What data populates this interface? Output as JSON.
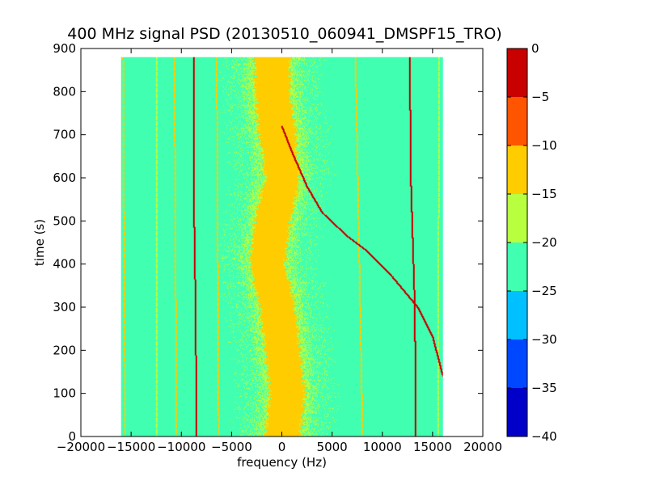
{
  "chart_data": [
    {
      "type": "heatmap",
      "title": "400 MHz signal PSD (20130510_060941_DMSPF15_TRO)",
      "xlabel": "frequency (Hz)",
      "ylabel": "time (s)",
      "xlim": [
        -20000,
        20000
      ],
      "ylim": [
        0,
        900
      ],
      "x_ticks": [
        -20000,
        -15000,
        -10000,
        -5000,
        0,
        5000,
        10000,
        15000,
        20000
      ],
      "x_tick_labels": [
        "−20000",
        "−15000",
        "−10000",
        "−5000",
        "0",
        "5000",
        "10000",
        "15000",
        "20000"
      ],
      "y_ticks": [
        0,
        100,
        200,
        300,
        400,
        500,
        600,
        700,
        800,
        900
      ],
      "y_tick_labels": [
        "0",
        "100",
        "200",
        "300",
        "400",
        "500",
        "600",
        "700",
        "800",
        "900"
      ],
      "data_extent": {
        "x": [
          -16000,
          16000
        ],
        "y": [
          0,
          880
        ]
      },
      "background_level": -22.5,
      "noise_band": {
        "level": -12.5,
        "center_points": [
          {
            "t": 0,
            "f": 0
          },
          {
            "t": 100,
            "f": 500
          },
          {
            "t": 200,
            "f": 0
          },
          {
            "t": 300,
            "f": -500
          },
          {
            "t": 400,
            "f": -1500
          },
          {
            "t": 500,
            "f": -1000
          },
          {
            "t": 600,
            "f": 0
          },
          {
            "t": 700,
            "f": -500
          },
          {
            "t": 800,
            "f": -1000
          },
          {
            "t": 880,
            "f": -1000
          }
        ],
        "half_width": 2500
      },
      "lines": [
        {
          "level": -2.5,
          "points": [
            [
              -8500,
              0
            ],
            [
              -8600,
              300
            ],
            [
              -8800,
              600
            ],
            [
              -8800,
              880
            ]
          ]
        },
        {
          "level": -2.5,
          "points": [
            [
              13300,
              0
            ],
            [
              13200,
              300
            ],
            [
              12800,
              600
            ],
            [
              12700,
              880
            ]
          ]
        },
        {
          "level": -2.5,
          "points": [
            [
              16000,
              140
            ],
            [
              15000,
              230
            ],
            [
              13500,
              300
            ],
            [
              11000,
              370
            ],
            [
              8500,
              430
            ],
            [
              6500,
              465
            ],
            [
              4000,
              520
            ],
            [
              2500,
              580
            ],
            [
              1000,
              660
            ],
            [
              0,
              720
            ]
          ]
        },
        {
          "level": -12.5,
          "points": [
            [
              -15600,
              0
            ],
            [
              -15800,
              880
            ]
          ]
        },
        {
          "level": -12.5,
          "points": [
            [
              -10500,
              0
            ],
            [
              -10700,
              880
            ]
          ]
        },
        {
          "level": -12.5,
          "points": [
            [
              -6300,
              0
            ],
            [
              -6500,
              880
            ]
          ]
        },
        {
          "level": -12.5,
          "points": [
            [
              8000,
              0
            ],
            [
              7300,
              880
            ]
          ]
        },
        {
          "level": -17.5,
          "points": [
            [
              -12500,
              0
            ],
            [
              -12500,
              880
            ]
          ]
        },
        {
          "level": -17.5,
          "points": [
            [
              15500,
              0
            ],
            [
              15600,
              880
            ]
          ]
        }
      ]
    },
    {
      "type": "colorbar",
      "range": [
        -40,
        0
      ],
      "levels": [
        {
          "from": -40,
          "to": -35,
          "color": "#0000c8"
        },
        {
          "from": -35,
          "to": -30,
          "color": "#0048ff"
        },
        {
          "from": -30,
          "to": -25,
          "color": "#00c0ff"
        },
        {
          "from": -25,
          "to": -20,
          "color": "#40ffb0"
        },
        {
          "from": -20,
          "to": -15,
          "color": "#b8ff40"
        },
        {
          "from": -15,
          "to": -10,
          "color": "#ffcc00"
        },
        {
          "from": -10,
          "to": -5,
          "color": "#ff5500"
        },
        {
          "from": -5,
          "to": 0,
          "color": "#c80000"
        }
      ],
      "ticks": [
        0,
        -5,
        -10,
        -15,
        -20,
        -25,
        -30,
        -35,
        -40
      ],
      "tick_labels": [
        "0",
        "−5",
        "−10",
        "−15",
        "−20",
        "−25",
        "−30",
        "−35",
        "−40"
      ]
    }
  ]
}
